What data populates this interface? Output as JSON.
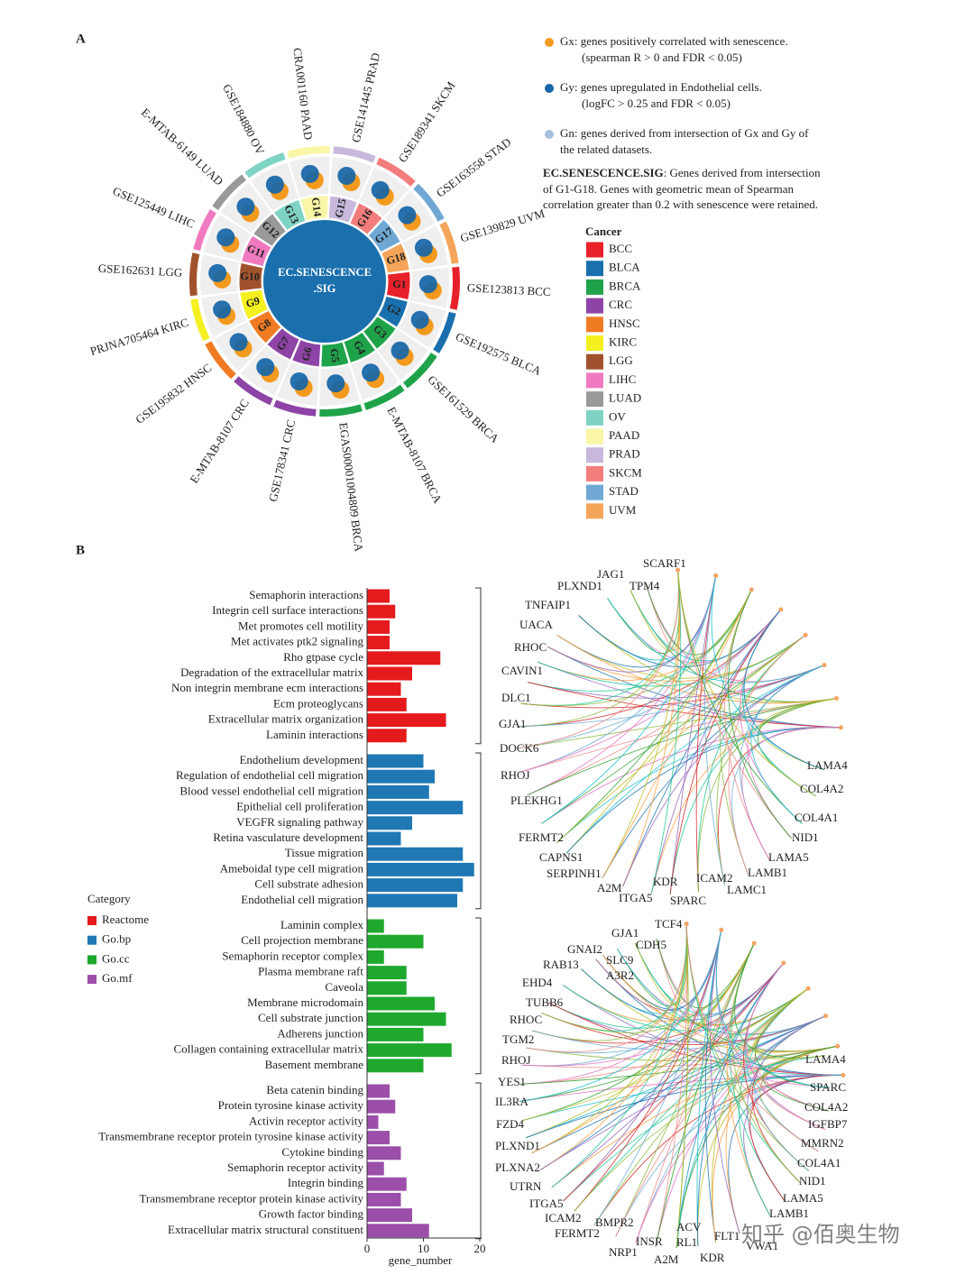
{
  "panel_a": {
    "label": "A",
    "center_label": [
      "EC.SENESCENCE",
      ".SIG"
    ],
    "datasets": [
      {
        "group": "G1",
        "name": "GSE123813 BCC",
        "cancer": "BCC"
      },
      {
        "group": "G2",
        "name": "GSE192575 BLCA",
        "cancer": "BLCA"
      },
      {
        "group": "G3",
        "name": "GSE161529 BRCA",
        "cancer": "BRCA"
      },
      {
        "group": "G4",
        "name": "E-MTAB-8107 BRCA",
        "cancer": "BRCA"
      },
      {
        "group": "G5",
        "name": "EGAS00001004809 BRCA",
        "cancer": "BRCA"
      },
      {
        "group": "G6",
        "name": "GSE178341 CRC",
        "cancer": "CRC"
      },
      {
        "group": "G7",
        "name": "E-MTAB-8107 CRC",
        "cancer": "CRC"
      },
      {
        "group": "G8",
        "name": "GSE195832 HNSC",
        "cancer": "HNSC"
      },
      {
        "group": "G9",
        "name": "PRJNA705464 KIRC",
        "cancer": "KIRC"
      },
      {
        "group": "G10",
        "name": "GSE162631 LGG",
        "cancer": "LGG"
      },
      {
        "group": "G11",
        "name": "GSE125449 LIHC",
        "cancer": "LIHC"
      },
      {
        "group": "G12",
        "name": "E-MTAB-6149 LUAD",
        "cancer": "LUAD"
      },
      {
        "group": "G13",
        "name": "GSE184880 OV",
        "cancer": "OV"
      },
      {
        "group": "G14",
        "name": "CRA001160 PAAD",
        "cancer": "PAAD"
      },
      {
        "group": "G15",
        "name": "GSE141445 PRAD",
        "cancer": "PRAD"
      },
      {
        "group": "G16",
        "name": "GSE189341 SKCM",
        "cancer": "SKCM"
      },
      {
        "group": "G17",
        "name": "GSE163558 STAD",
        "cancer": "STAD"
      },
      {
        "group": "G18",
        "name": "GSE139829 UVM",
        "cancer": "UVM"
      }
    ],
    "notes": [
      {
        "color": "#f39a1e",
        "lines": [
          "Gx: genes positively correlated with senescence.",
          "(spearman R > 0 and FDR < 0.05)"
        ]
      },
      {
        "color": "#1565a8",
        "lines": [
          "Gy: genes upregulated in Endothelial cells.",
          "(logFC > 0.25 and FDR < 0.05)"
        ]
      },
      {
        "color": "#a9bfdf",
        "lines": [
          "Gn: genes derived from intersection of Gx and Gy of",
          "the related datasets."
        ]
      }
    ],
    "signature_title": "EC.SENESCENCE.SIG",
    "signature_text": [
      ": Genes derived from intersection",
      "of G1-G18. Genes with geometric mean of Spearman",
      "correlation greater than 0.2 with senescence were retained."
    ],
    "legend_title": "Cancer",
    "cancers": [
      {
        "name": "BCC",
        "color": "#e8202a"
      },
      {
        "name": "BLCA",
        "color": "#1a6fad"
      },
      {
        "name": "BRCA",
        "color": "#1fa34a"
      },
      {
        "name": "CRC",
        "color": "#8e44a6"
      },
      {
        "name": "HNSC",
        "color": "#f07b22"
      },
      {
        "name": "KIRC",
        "color": "#f5f020"
      },
      {
        "name": "LGG",
        "color": "#a0522d"
      },
      {
        "name": "LIHC",
        "color": "#f07ac0"
      },
      {
        "name": "LUAD",
        "color": "#999999"
      },
      {
        "name": "OV",
        "color": "#7fd3c4"
      },
      {
        "name": "PAAD",
        "color": "#f9f7a6"
      },
      {
        "name": "PRAD",
        "color": "#c7b8dc"
      },
      {
        "name": "SKCM",
        "color": "#f37d7d"
      },
      {
        "name": "STAD",
        "color": "#6fa8d4"
      },
      {
        "name": "UVM",
        "color": "#f5a55a"
      }
    ]
  },
  "panel_b": {
    "label": "B"
  },
  "chart_data": {
    "type": "bar",
    "orientation": "horizontal",
    "xlabel": "gene_number",
    "xlim": [
      0,
      20
    ],
    "xticks": [
      0,
      10,
      20
    ],
    "legend_title": "Category",
    "series": [
      {
        "name": "Reactome",
        "color": "#e41a1c",
        "categories": [
          "Semaphorin interactions",
          "Integrin cell surface interactions",
          "Met promotes cell motility",
          "Met activates ptk2 signaling",
          "Rho gtpase cycle",
          "Degradation of the extracellular matrix",
          "Non integrin membrane ecm interactions",
          "Ecm proteoglycans",
          "Extracellular matrix organization",
          "Laminin interactions"
        ],
        "values": [
          4,
          5,
          4,
          4,
          13,
          8,
          6,
          7,
          14,
          7
        ]
      },
      {
        "name": "Go.bp",
        "color": "#1f78b4",
        "categories": [
          "Endothelium development",
          "Regulation of endothelial cell migration",
          "Blood vessel endothelial cell migration",
          "Epithelial cell proliferation",
          "VEGFR signaling pathway",
          "Retina vasculature development",
          "Tissue migration",
          "Ameboidal type cell migration",
          "Cell substrate adhesion",
          "Endothelial cell migration"
        ],
        "values": [
          10,
          12,
          11,
          17,
          8,
          6,
          17,
          19,
          17,
          16
        ]
      },
      {
        "name": "Go.cc",
        "color": "#1fa82e",
        "categories": [
          "Laminin complex",
          "Cell projection membrane",
          "Semaphorin receptor complex",
          "Plasma membrane raft",
          "Caveola",
          "Membrane microdomain",
          "Cell substrate junction",
          "Adherens junction",
          "Collagen containing extracellular matrix",
          "Basement membrane"
        ],
        "values": [
          3,
          10,
          3,
          7,
          7,
          12,
          14,
          10,
          15,
          10
        ]
      },
      {
        "name": "Go.mf",
        "color": "#9b4fa9",
        "categories": [
          "Beta catenin binding",
          "Protein tyrosine kinase activity",
          "Activin receptor activity",
          "Transmembrane receptor protein tyrosine kinase activity",
          "Cytokine binding",
          "Semaphorin receptor activity",
          "Integrin binding",
          "Transmembrane receptor protein kinase activity",
          "Growth factor binding",
          "Extracellular matrix structural constituent"
        ],
        "values": [
          4,
          5,
          2,
          4,
          6,
          3,
          7,
          6,
          8,
          11
        ]
      }
    ]
  },
  "network_top": {
    "genes": [
      "SCARF1",
      "JAG1",
      "TPM4",
      "PLXND1",
      "TNFAIP1",
      "UACA",
      "RHOC",
      "CAVIN1",
      "DLC1",
      "GJA1",
      "DOCK6",
      "RHOJ",
      "PLEKHG1",
      "FERMT2",
      "CAPNS1",
      "SERPINH1",
      "A2M",
      "ITGA5",
      "KDR",
      "SPARC",
      "ICAM2",
      "LAMC1",
      "LAMB1",
      "LAMA5",
      "NID1",
      "COL4A1",
      "COL4A2",
      "LAMA4"
    ]
  },
  "network_bottom": {
    "genes": [
      "TCF4",
      "GJA1",
      "CDH5",
      "GNAI2",
      "SLC9",
      "A3R2",
      "RAB13",
      "EHD4",
      "TUBB6",
      "RHOC",
      "TGM2",
      "RHOJ",
      "YES1",
      "IL3RA",
      "FZD4",
      "PLXND1",
      "PLXNA2",
      "UTRN",
      "ITGA5",
      "ICAM2",
      "FERMT2",
      "BMPR2",
      "NRP1",
      "INSR",
      "A2M",
      "ACV",
      "RL1",
      "KDR",
      "FLT1",
      "VWA1",
      "LAMB1",
      "LAMA5",
      "NID1",
      "COL4A1",
      "MMRN2",
      "IGFBP7",
      "COL4A2",
      "SPARC",
      "LAMA4"
    ]
  },
  "watermark": "知乎 @佰奥生物"
}
